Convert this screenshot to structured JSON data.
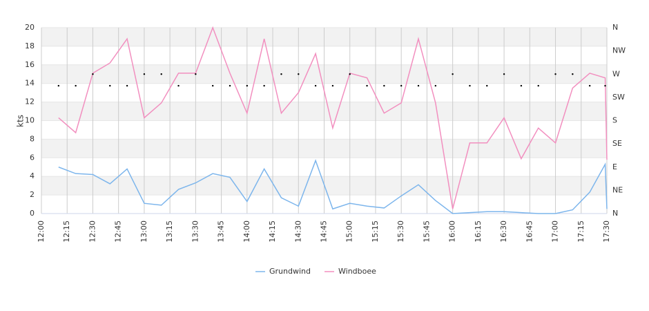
{
  "chart_data": {
    "type": "line",
    "y_label": "kts",
    "x": [
      "12:10",
      "12:20",
      "12:30",
      "12:40",
      "12:50",
      "13:00",
      "13:10",
      "13:20",
      "13:30",
      "13:40",
      "13:50",
      "14:00",
      "14:10",
      "14:20",
      "14:30",
      "14:40",
      "14:50",
      "15:00",
      "15:10",
      "15:20",
      "15:30",
      "15:40",
      "15:50",
      "16:00",
      "16:10",
      "16:20",
      "16:30",
      "16:40",
      "16:50",
      "17:00",
      "17:10",
      "17:20",
      "17:29",
      "17:30"
    ],
    "series": [
      {
        "name": "Grundwind",
        "color": "#7cb5ec",
        "values": [
          5.0,
          4.3,
          4.2,
          3.2,
          4.8,
          1.1,
          0.9,
          2.6,
          3.3,
          4.3,
          3.9,
          1.3,
          4.8,
          1.7,
          0.8,
          5.7,
          0.5,
          1.1,
          0.8,
          0.6,
          1.9,
          3.1,
          1.4,
          0.0,
          0.1,
          0.2,
          0.2,
          0.1,
          0.0,
          0.0,
          0.4,
          2.3,
          5.3,
          0.5
        ]
      },
      {
        "name": "Windboee",
        "color": "#f28fbf",
        "values": [
          10.3,
          8.7,
          15.1,
          16.2,
          18.8,
          10.3,
          11.9,
          15.1,
          15.1,
          20.0,
          15.1,
          10.8,
          18.8,
          10.8,
          13.0,
          17.2,
          9.2,
          15.1,
          14.6,
          10.8,
          11.9,
          18.8,
          11.9,
          0.5,
          7.6,
          7.6,
          10.3,
          5.9,
          9.2,
          7.6,
          13.5,
          15.1,
          14.6,
          5.8
        ]
      }
    ],
    "direction": {
      "axis": "y2",
      "color": "#000000",
      "values": [
        247.5,
        247.5,
        270,
        247.5,
        247.5,
        270,
        270,
        247.5,
        270,
        247.5,
        247.5,
        247.5,
        247.5,
        270,
        270,
        247.5,
        247.5,
        270,
        247.5,
        247.5,
        247.5,
        247.5,
        247.5,
        270,
        247.5,
        247.5,
        270,
        247.5,
        247.5,
        270,
        270,
        247.5,
        247.5,
        null
      ]
    },
    "xlim": [
      "12:00",
      "17:30"
    ],
    "xticks": [
      "12:00",
      "12:15",
      "12:30",
      "12:45",
      "13:00",
      "13:15",
      "13:30",
      "13:45",
      "14:00",
      "14:15",
      "14:30",
      "14:45",
      "15:00",
      "15:15",
      "15:30",
      "15:45",
      "16:00",
      "16:15",
      "16:30",
      "16:45",
      "17:00",
      "17:15",
      "17:30"
    ],
    "ylim": [
      0,
      20
    ],
    "yticks": [
      0,
      2,
      4,
      6,
      8,
      10,
      12,
      14,
      16,
      18,
      20
    ],
    "y2lim": [
      0,
      360
    ],
    "y2ticks": [
      {
        "value": 0,
        "label": "N"
      },
      {
        "value": 45,
        "label": "NE"
      },
      {
        "value": 90,
        "label": "E"
      },
      {
        "value": 135,
        "label": "SE"
      },
      {
        "value": 180,
        "label": "S"
      },
      {
        "value": 225,
        "label": "SW"
      },
      {
        "value": 270,
        "label": "W"
      },
      {
        "value": 315,
        "label": "NW"
      },
      {
        "value": 360,
        "label": "N"
      }
    ],
    "grid": true,
    "legend": "bottom"
  }
}
